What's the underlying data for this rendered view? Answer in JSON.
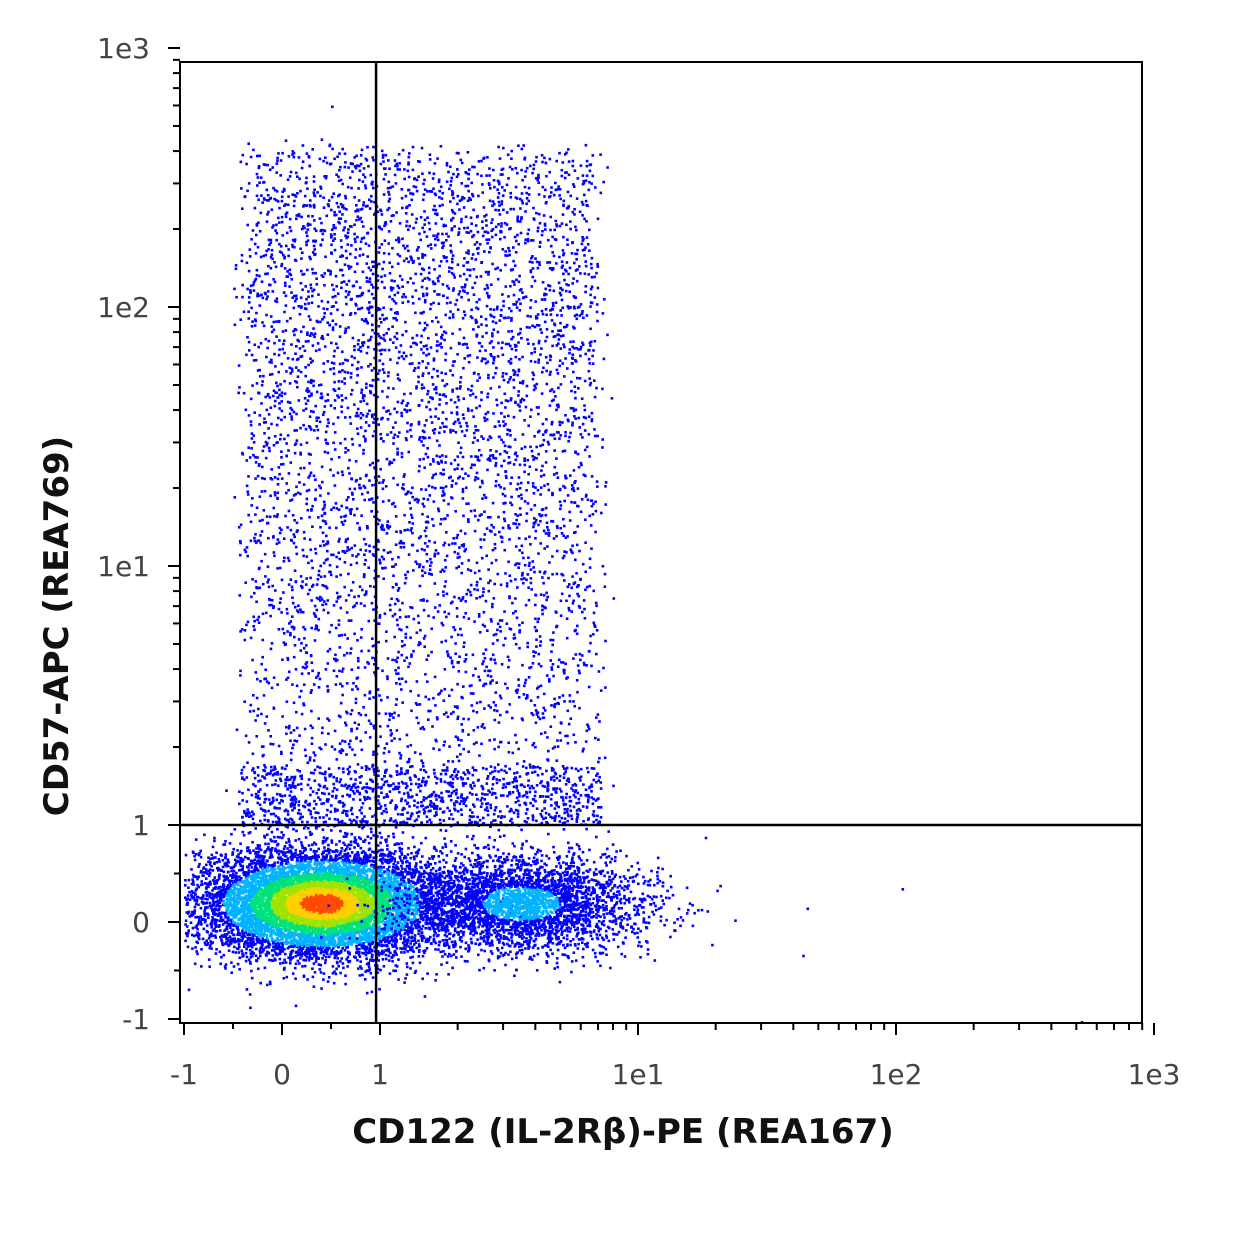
{
  "chart_data": {
    "type": "scatter",
    "subtype": "flow-cytometry density dot plot",
    "xlabel": "CD122 (IL-2Rβ)-PE (REA167)",
    "ylabel": "CD57-APC (REA769)",
    "x_scale": "biexponential (linear below 1, log above 1)",
    "y_scale": "biexponential (linear below 1, log above 1)",
    "xlim": [
      -1,
      1000
    ],
    "ylim": [
      -1,
      1000
    ],
    "x_ticks": [
      {
        "value": -1,
        "label": "-1"
      },
      {
        "value": 0,
        "label": "0"
      },
      {
        "value": 1,
        "label": "1"
      },
      {
        "value": 10,
        "label": "1e1"
      },
      {
        "value": 100,
        "label": "1e2"
      },
      {
        "value": 1000,
        "label": "1e3"
      }
    ],
    "y_ticks": [
      {
        "value": -1,
        "label": "-1"
      },
      {
        "value": 0,
        "label": "0"
      },
      {
        "value": 1,
        "label": "1"
      },
      {
        "value": 10,
        "label": "1e1"
      },
      {
        "value": 100,
        "label": "1e2"
      },
      {
        "value": 1000,
        "label": "1e3"
      }
    ],
    "quadrant_gate": {
      "x": 0.96,
      "y": 1.0
    },
    "grid": false,
    "density_colors": [
      "#0000ff",
      "#00b4ff",
      "#00e27a",
      "#9fe400",
      "#ffd000",
      "#ff4a00"
    ],
    "populations": [
      {
        "name": "main-negative",
        "center_x": 0.4,
        "center_y": 0.2,
        "density": "highest",
        "approx_events": 9000
      },
      {
        "name": "cd122-positive-cd57-negative",
        "center_x": 3.5,
        "center_y": 0.2,
        "density": "medium",
        "approx_events": 3000
      },
      {
        "name": "cd57-positive",
        "center_x": 1.6,
        "center_y": 60,
        "x_range": [
          -0.5,
          8
        ],
        "y_range": [
          1,
          500
        ],
        "density": "low",
        "approx_events": 5000
      }
    ]
  }
}
